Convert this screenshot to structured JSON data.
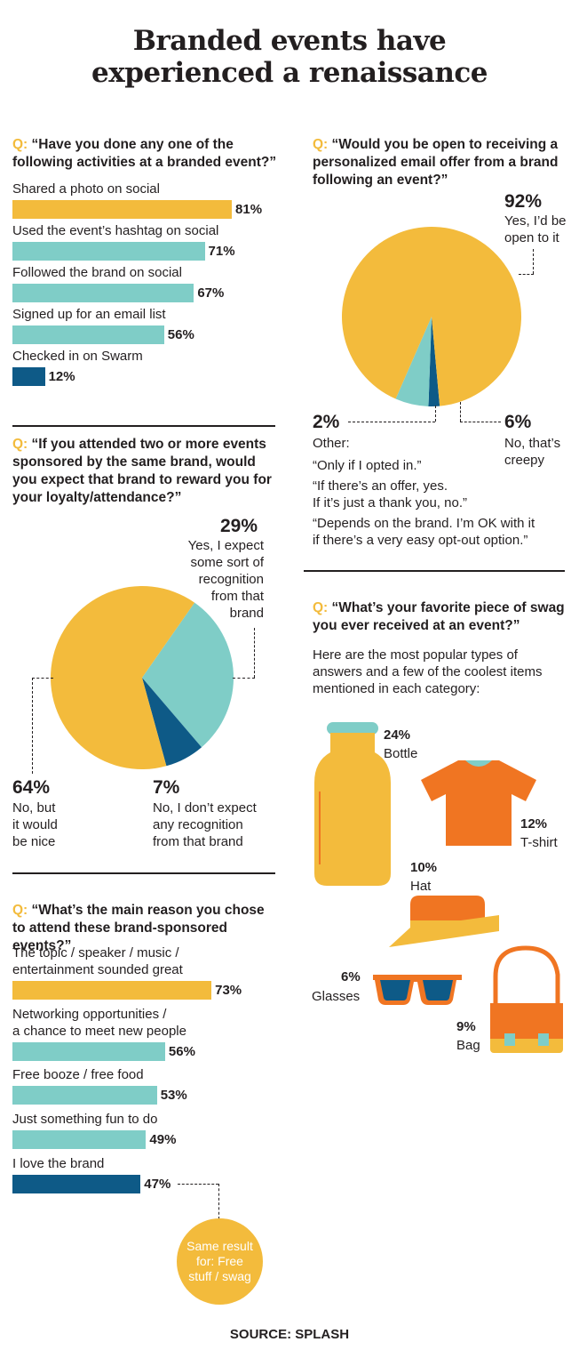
{
  "title_line1": "Branded events have",
  "title_line2": "experienced a renaissance",
  "colors": {
    "yellow": "#f3bb3c",
    "teal": "#7fcdc7",
    "navy": "#0e5a87",
    "orange": "#f07522",
    "dark": "#231f20"
  },
  "activities": {
    "q_prefix": "Q:",
    "question": "“Have you done any one of the following activities at a branded event?”",
    "chart_data": {
      "type": "bar",
      "categories": [
        "Shared a photo on social",
        "Used the event’s hashtag on social",
        "Followed the brand on social",
        "Signed up for an email list",
        "Checked in on Swarm"
      ],
      "values": [
        81,
        71,
        67,
        56,
        12
      ],
      "value_labels": [
        "81%",
        "71%",
        "67%",
        "56%",
        "12%"
      ],
      "colors": [
        "#f3bb3c",
        "#7fcdc7",
        "#7fcdc7",
        "#7fcdc7",
        "#0e5a87"
      ],
      "xlim": [
        0,
        100
      ]
    }
  },
  "email": {
    "q_prefix": "Q:",
    "question": "“Would you be open to receiving a personalized email offer from a brand following an event?”",
    "chart_data": {
      "type": "pie",
      "categories": [
        "Yes, I’d be open to it",
        "No, that’s creepy",
        "Other"
      ],
      "values": [
        92,
        6,
        2
      ],
      "colors": [
        "#f3bb3c",
        "#7fcdc7",
        "#0e5a87"
      ]
    },
    "yes_pct": "92%",
    "yes_label": "Yes, I’d be open to it",
    "no_pct": "6%",
    "no_label": "No, that’s creepy",
    "other_pct": "2%",
    "other_label": "Other:",
    "quote1": "“Only if I opted in.”",
    "quote2a": "“If there’s an offer, yes.",
    "quote2b": "If it’s just a thank you, no.”",
    "quote3a": "“Depends on the brand. I’m OK with it",
    "quote3b": "if there’s a very easy opt-out option.”"
  },
  "loyalty": {
    "q_prefix": "Q:",
    "question": "“If you attended two or more events sponsored by the same brand, would you expect that brand to reward you for your loyalty/attendance?”",
    "chart_data": {
      "type": "pie",
      "categories": [
        "Yes, I expect some sort of recognition from that brand",
        "No, but it would be nice",
        "No, I don’t expect any recognition from that brand"
      ],
      "values": [
        29,
        64,
        7
      ],
      "colors": [
        "#7fcdc7",
        "#f3bb3c",
        "#0e5a87"
      ]
    },
    "yes_pct": "29%",
    "yes_l1": "Yes, I expect",
    "yes_l2": "some sort of",
    "yes_l3": "recognition",
    "yes_l4": "from that",
    "yes_l5": "brand",
    "nice_pct": "64%",
    "nice_l1": "No, but",
    "nice_l2": "it would",
    "nice_l3": "be nice",
    "no_pct": "7%",
    "no_l1": "No, I don’t expect",
    "no_l2": "any recognition",
    "no_l3": "from that brand"
  },
  "swag": {
    "q_prefix": "Q:",
    "question": "“What’s your favorite piece of swag you ever received at an event?”",
    "intro": "Here are the most popular types of answers and a few of the coolest items mentioned in each category:",
    "chart_data": {
      "type": "table",
      "categories": [
        "Bottle",
        "T-shirt",
        "Hat",
        "Glasses",
        "Bag"
      ],
      "values": [
        24,
        12,
        10,
        6,
        9
      ],
      "value_labels": [
        "24%",
        "12%",
        "10%",
        "6%",
        "9%"
      ]
    }
  },
  "reason": {
    "q_prefix": "Q:",
    "question": "“What’s the main reason you chose to attend these brand-sponsored events?”",
    "chart_data": {
      "type": "bar",
      "categories": [
        "The topic / speaker / music / entertainment sounded great",
        "Networking opportunities / a chance to meet new people",
        "Free booze / free food",
        "Just something fun to do",
        "I love the brand"
      ],
      "values": [
        73,
        56,
        53,
        49,
        47
      ],
      "value_labels": [
        "73%",
        "56%",
        "53%",
        "49%",
        "47%"
      ],
      "colors": [
        "#f3bb3c",
        "#7fcdc7",
        "#7fcdc7",
        "#7fcdc7",
        "#0e5a87"
      ],
      "xlim": [
        0,
        100
      ]
    },
    "lab1a": "The topic / speaker / music /",
    "lab1b": "entertainment sounded great",
    "lab2a": "Networking opportunities /",
    "lab2b": "a chance to meet new people",
    "note": "Same result for: Free stuff / swag"
  },
  "source": "SOURCE: SPLASH"
}
